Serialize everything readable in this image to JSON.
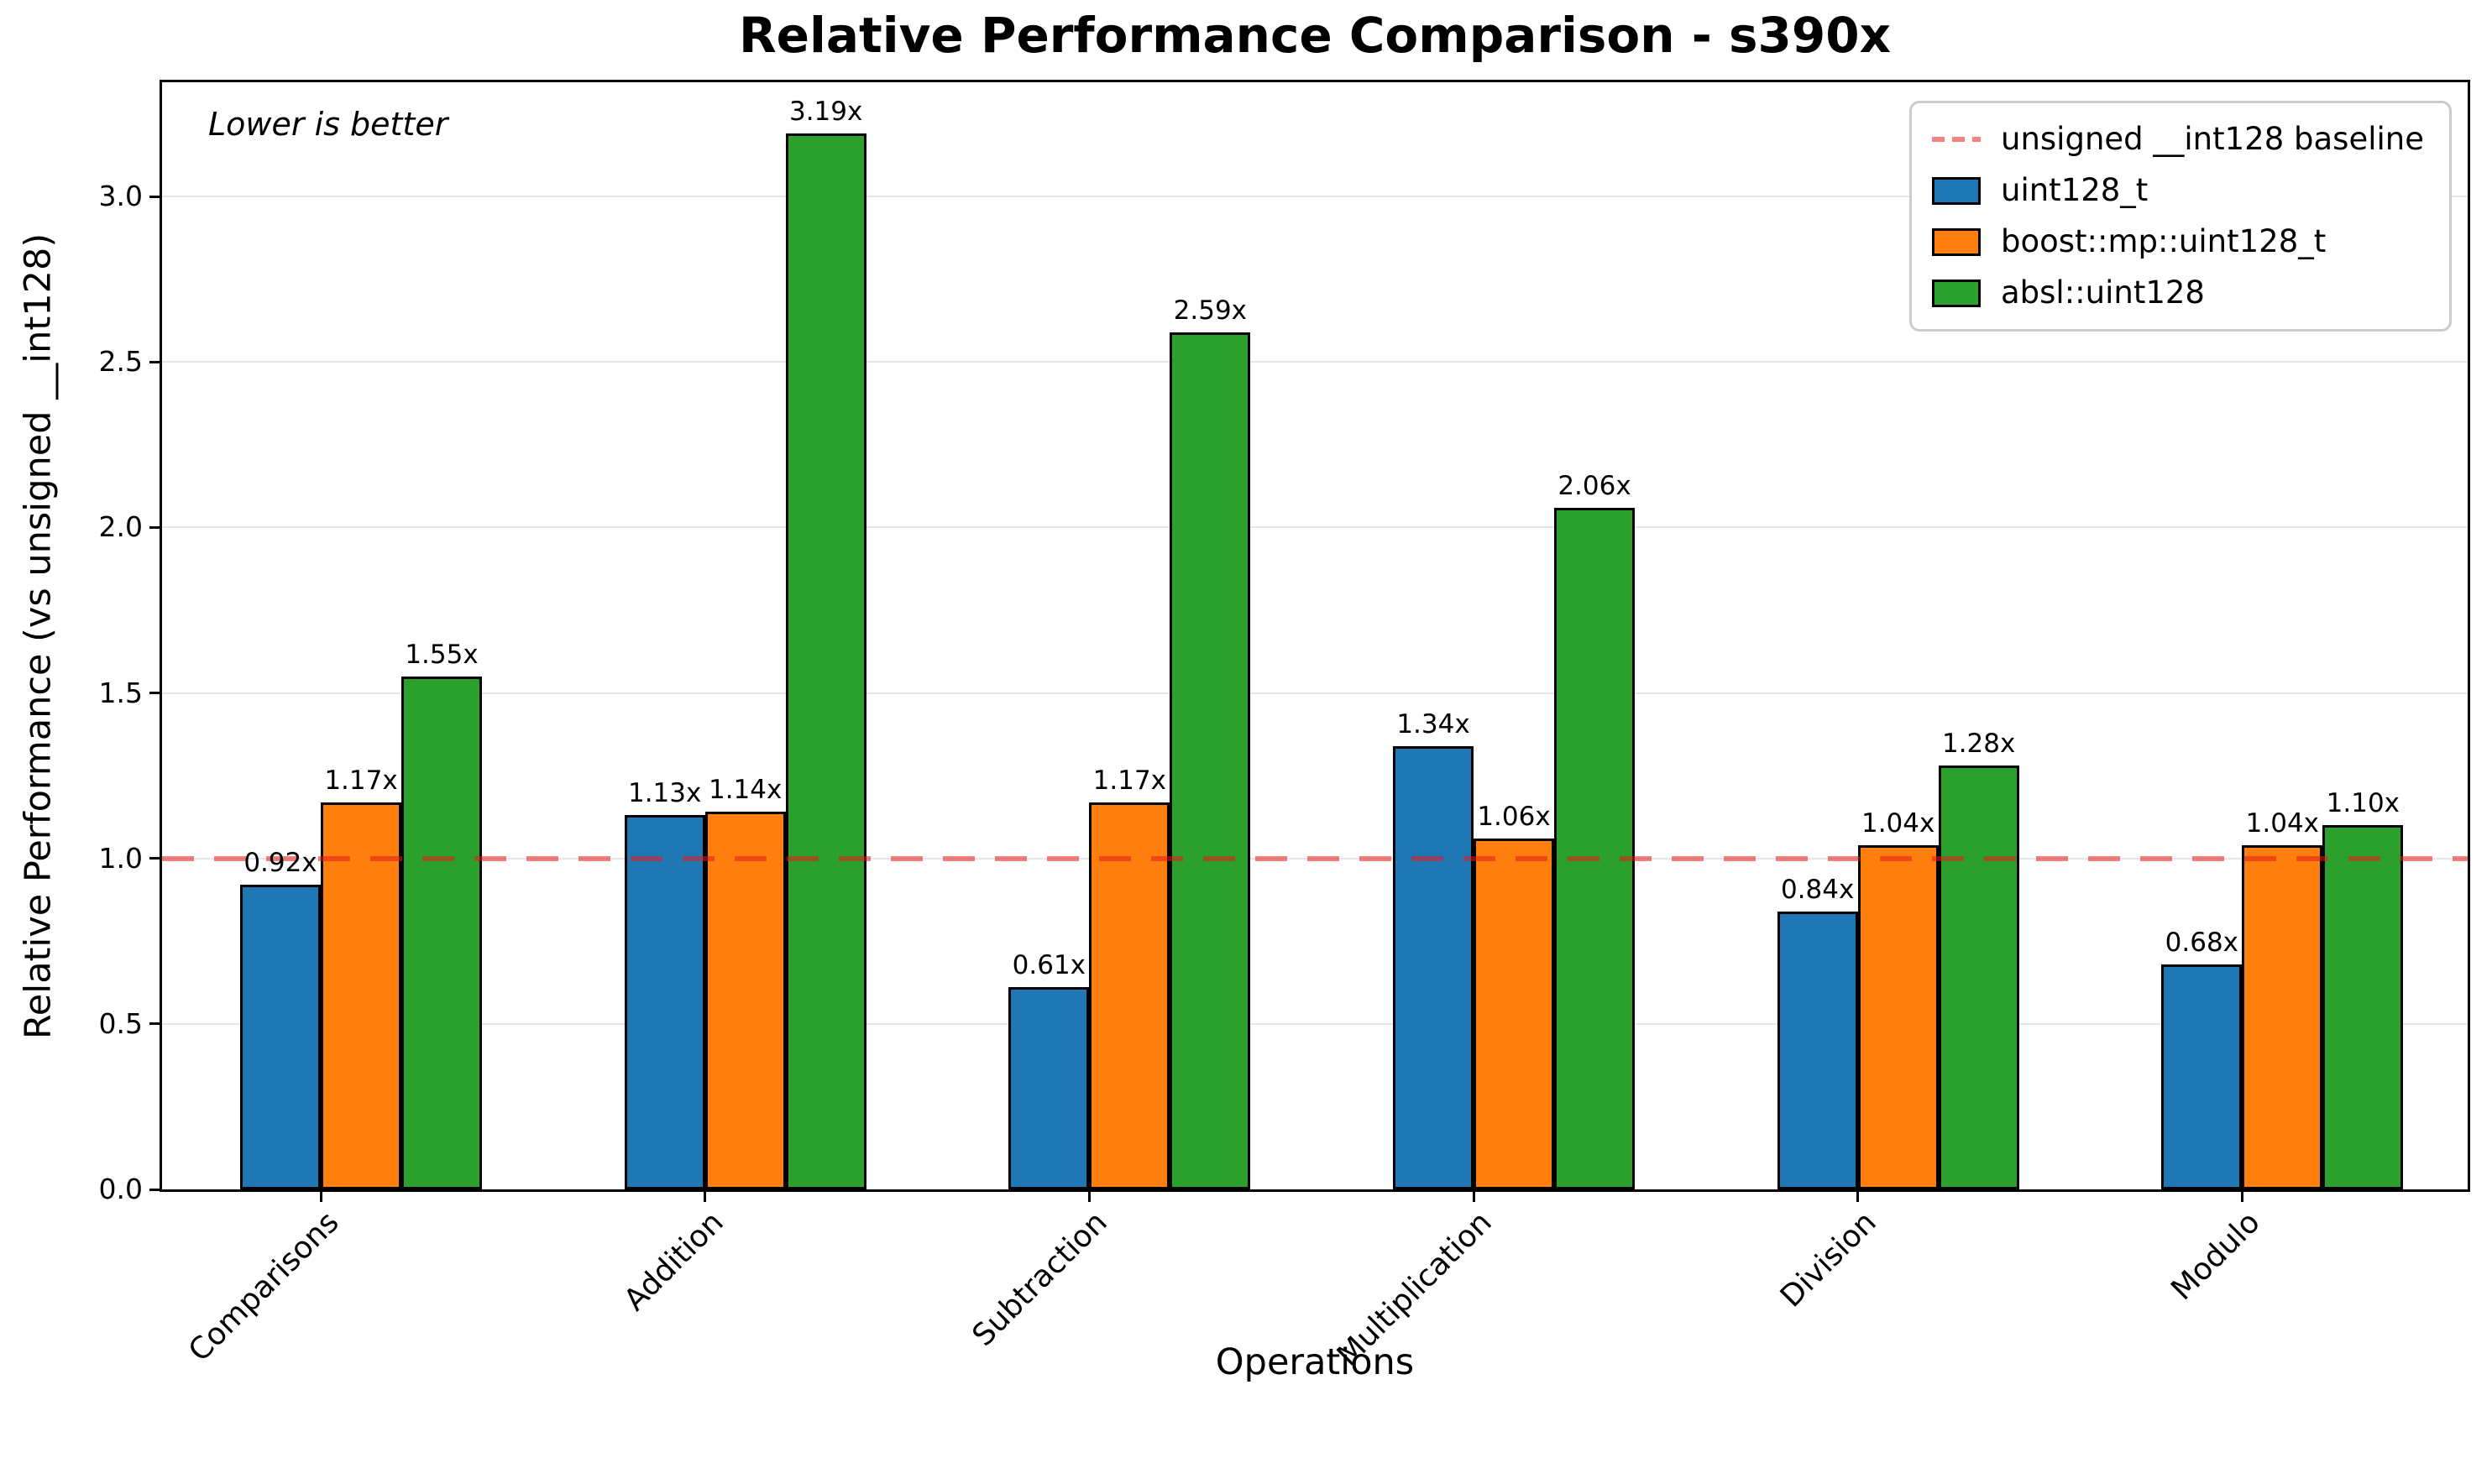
{
  "title": "Relative Performance Comparison - s390x",
  "annotation": "Lower is better",
  "chart_data": {
    "type": "bar",
    "title": "Relative Performance Comparison - s390x",
    "xlabel": "Operations",
    "ylabel": "Relative Performance (vs unsigned __int128)",
    "categories": [
      "Comparisons",
      "Addition",
      "Subtraction",
      "Multiplication",
      "Division",
      "Modulo"
    ],
    "series": [
      {
        "name": "uint128_t",
        "color": "#1f77b4",
        "values": [
          0.92,
          1.13,
          0.61,
          1.34,
          0.84,
          0.68
        ]
      },
      {
        "name": "boost::mp::uint128_t",
        "color": "#ff7f0e",
        "values": [
          1.17,
          1.14,
          1.17,
          1.06,
          1.04,
          1.04
        ]
      },
      {
        "name": "absl::uint128",
        "color": "#2ca02c",
        "values": [
          1.55,
          3.19,
          2.59,
          2.06,
          1.28,
          1.1
        ]
      }
    ],
    "value_suffix": "x",
    "baseline": {
      "value": 1.0,
      "label": "unsigned __int128 baseline",
      "color": "#f58282"
    },
    "yticks": [
      0.0,
      0.5,
      1.0,
      1.5,
      2.0,
      2.5,
      3.0
    ],
    "ylim": [
      0,
      3.345
    ],
    "grid": true,
    "legend_position": "upper right",
    "annotation": "Lower is better"
  }
}
